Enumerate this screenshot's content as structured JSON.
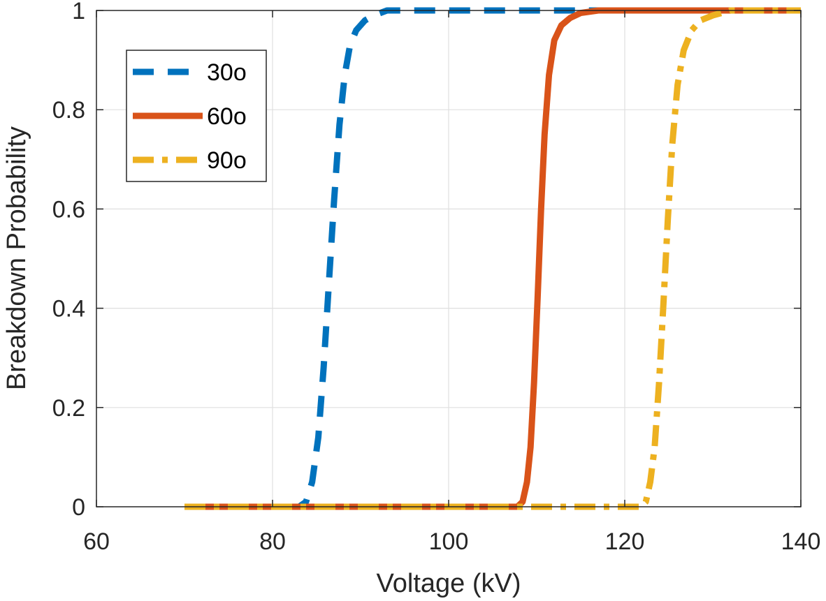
{
  "chart_data": {
    "type": "line",
    "title": "",
    "xlabel": "Voltage (kV)",
    "ylabel": "Breakdown Probability",
    "xlim": [
      60,
      140
    ],
    "ylim": [
      0,
      1
    ],
    "xticks": [
      60,
      80,
      100,
      120,
      140
    ],
    "yticks": [
      0,
      0.2,
      0.4,
      0.6,
      0.8,
      1
    ],
    "ytick_labels": [
      "0",
      "0.2",
      "0.4",
      "0.6",
      "0.8",
      "1"
    ],
    "grid": true,
    "legend_position": "top-left",
    "series": [
      {
        "name": "30o",
        "color": "#0072BD",
        "style": "dashed",
        "x": [
          70,
          83,
          83.8,
          84.5,
          85.2,
          85.8,
          86.4,
          87.0,
          87.6,
          88.2,
          88.8,
          89.5,
          90.5,
          91.5,
          93,
          96,
          140
        ],
        "y": [
          0,
          0,
          0.01,
          0.05,
          0.14,
          0.28,
          0.45,
          0.62,
          0.77,
          0.87,
          0.93,
          0.96,
          0.98,
          0.99,
          1.0,
          1.0,
          1.0
        ]
      },
      {
        "name": "60o",
        "color": "#D95319",
        "style": "solid",
        "x": [
          70,
          107.8,
          108.4,
          108.9,
          109.3,
          109.7,
          110.1,
          110.5,
          110.9,
          111.4,
          112,
          112.8,
          113.8,
          115,
          117,
          119,
          140
        ],
        "y": [
          0,
          0,
          0.01,
          0.05,
          0.12,
          0.25,
          0.42,
          0.6,
          0.75,
          0.87,
          0.94,
          0.97,
          0.985,
          0.995,
          1.0,
          1.0,
          1.0
        ]
      },
      {
        "name": "90o",
        "color": "#EDB120",
        "style": "dashdot",
        "x": [
          70,
          121.8,
          122.4,
          122.9,
          123.4,
          123.9,
          124.4,
          124.9,
          125.4,
          126.0,
          126.7,
          127.6,
          128.6,
          130,
          132,
          134,
          140
        ],
        "y": [
          0,
          0,
          0.01,
          0.05,
          0.12,
          0.25,
          0.41,
          0.58,
          0.73,
          0.85,
          0.92,
          0.96,
          0.98,
          0.99,
          1.0,
          1.0,
          1.0
        ]
      }
    ]
  }
}
